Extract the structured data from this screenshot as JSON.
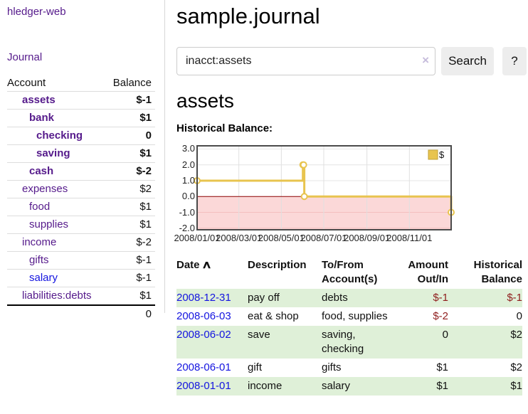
{
  "colors": {
    "link_purple": "#551a8b",
    "link_blue": "#1414e0",
    "negative_strong": "#8f1d1d",
    "negative_soft": "#b96a6a",
    "row_stripe_green": "#dff0d8",
    "chart_gold": "#e8c44f",
    "chart_negative_region": "#fbd8d8",
    "chart_zero_line": "#8b0000"
  },
  "app": {
    "brand": "hledger-web",
    "nav_journal": "Journal"
  },
  "sidebar": {
    "columns": {
      "account": "Account",
      "balance": "Balance"
    },
    "accounts": [
      {
        "name": "assets",
        "level": 1,
        "balance": "$-1",
        "bold": true,
        "neg": "strong"
      },
      {
        "name": "bank",
        "level": 2,
        "balance": "$1",
        "bold": true,
        "neg": "none"
      },
      {
        "name": "checking",
        "level": 3,
        "balance": "0",
        "bold": true,
        "neg": "none"
      },
      {
        "name": "saving",
        "level": 3,
        "balance": "$1",
        "bold": true,
        "neg": "none"
      },
      {
        "name": "cash",
        "level": 2,
        "balance": "$-2",
        "bold": true,
        "neg": "strong"
      },
      {
        "name": "expenses",
        "level": 1,
        "balance": "$2",
        "bold": false,
        "neg": "none"
      },
      {
        "name": "food",
        "level": 2,
        "balance": "$1",
        "bold": false,
        "neg": "none"
      },
      {
        "name": "supplies",
        "level": 2,
        "balance": "$1",
        "bold": false,
        "neg": "none"
      },
      {
        "name": "income",
        "level": 1,
        "balance": "$-2",
        "bold": false,
        "neg": "soft"
      },
      {
        "name": "gifts",
        "level": 2,
        "balance": "$-1",
        "bold": false,
        "neg": "soft"
      },
      {
        "name": "salary",
        "level": 2,
        "balance": "$-1",
        "bold": false,
        "neg": "soft",
        "link_style": "blue"
      },
      {
        "name": "liabilities:debts",
        "level": 1,
        "balance": "$1",
        "bold": false,
        "neg": "none"
      }
    ],
    "total": "0"
  },
  "header": {
    "title": "sample.journal"
  },
  "search": {
    "value": "inacct:assets",
    "clear_icon": "×",
    "button_label": "Search",
    "help_label": "?"
  },
  "account_page": {
    "heading": "assets",
    "chart_title": "Historical Balance:"
  },
  "chart_data": {
    "type": "line",
    "step": true,
    "legend": {
      "label": "$",
      "position": "top-right"
    },
    "series": [
      {
        "name": "$",
        "color": "#e8c44f",
        "points": [
          {
            "date": "2008-01-01",
            "day": 0,
            "value": 1
          },
          {
            "date": "2008-06-01",
            "day": 152,
            "value": 2
          },
          {
            "date": "2008-06-02",
            "day": 153,
            "value": 2
          },
          {
            "date": "2008-06-03",
            "day": 154,
            "value": 0
          },
          {
            "date": "2008-12-31",
            "day": 365,
            "value": -1
          }
        ]
      }
    ],
    "x_ticks": [
      {
        "label": "2008/01/01",
        "day": 0
      },
      {
        "label": "2008/03/01",
        "day": 60
      },
      {
        "label": "2008/05/01",
        "day": 121
      },
      {
        "label": "2008/07/01",
        "day": 182
      },
      {
        "label": "2008/09/01",
        "day": 244
      },
      {
        "label": "2008/11/01",
        "day": 305
      }
    ],
    "y_ticks": [
      3.0,
      2.0,
      1.0,
      0.0,
      -1.0,
      -2.0
    ],
    "ylim": [
      -2.1,
      3.2
    ],
    "xlim_days": [
      0,
      365
    ],
    "grid": true,
    "negative_region": true
  },
  "register": {
    "headers": {
      "date": "Date",
      "sort_asc_icon": "∧",
      "description": "Description",
      "accounts": "To/From\nAccount(s)",
      "amount": "Amount\nOut/In",
      "balance": "Historical\nBalance"
    },
    "rows": [
      {
        "date": "2008-12-31",
        "description": "pay off",
        "accounts": "debts",
        "amount": "$-1",
        "balance": "$-1",
        "amount_neg": true,
        "balance_neg": true,
        "shade": true
      },
      {
        "date": "2008-06-03",
        "description": "eat & shop",
        "accounts": "food, supplies",
        "amount": "$-2",
        "balance": "0",
        "amount_neg": true,
        "balance_neg": false,
        "shade": false
      },
      {
        "date": "2008-06-02",
        "description": "save",
        "accounts": "saving,\nchecking",
        "amount": "0",
        "balance": "$2",
        "amount_neg": false,
        "balance_neg": false,
        "shade": true
      },
      {
        "date": "2008-06-01",
        "description": "gift",
        "accounts": "gifts",
        "amount": "$1",
        "balance": "$2",
        "amount_neg": false,
        "balance_neg": false,
        "shade": false
      },
      {
        "date": "2008-01-01",
        "description": "income",
        "accounts": "salary",
        "amount": "$1",
        "balance": "$1",
        "amount_neg": false,
        "balance_neg": false,
        "shade": true
      }
    ]
  }
}
